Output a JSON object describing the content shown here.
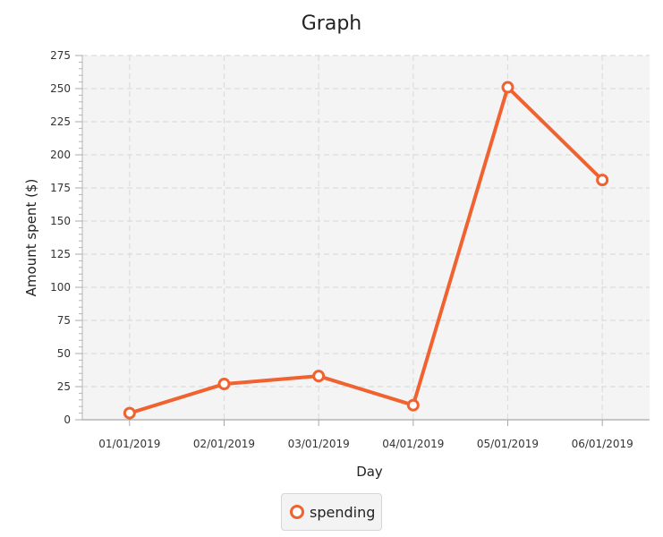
{
  "chart_data": {
    "type": "line",
    "title": "Graph",
    "xlabel": "Day",
    "ylabel": "Amount spent ($)",
    "categories": [
      "01/01/2019",
      "02/01/2019",
      "03/01/2019",
      "04/01/2019",
      "05/01/2019",
      "06/01/2019"
    ],
    "series": [
      {
        "name": "spending",
        "values": [
          5,
          27,
          33,
          11,
          251,
          181
        ],
        "color": "#f0622f"
      }
    ],
    "ylim": [
      0,
      275
    ],
    "yticks": [
      "0",
      "25",
      "50",
      "75",
      "100",
      "125",
      "150",
      "175",
      "200",
      "225",
      "250",
      "275"
    ],
    "grid": true,
    "legend_position": "bottom-center"
  },
  "colors": {
    "series": "#f0622f",
    "plot_background": "#f4f4f4",
    "gridline": "#dcdcdc"
  }
}
